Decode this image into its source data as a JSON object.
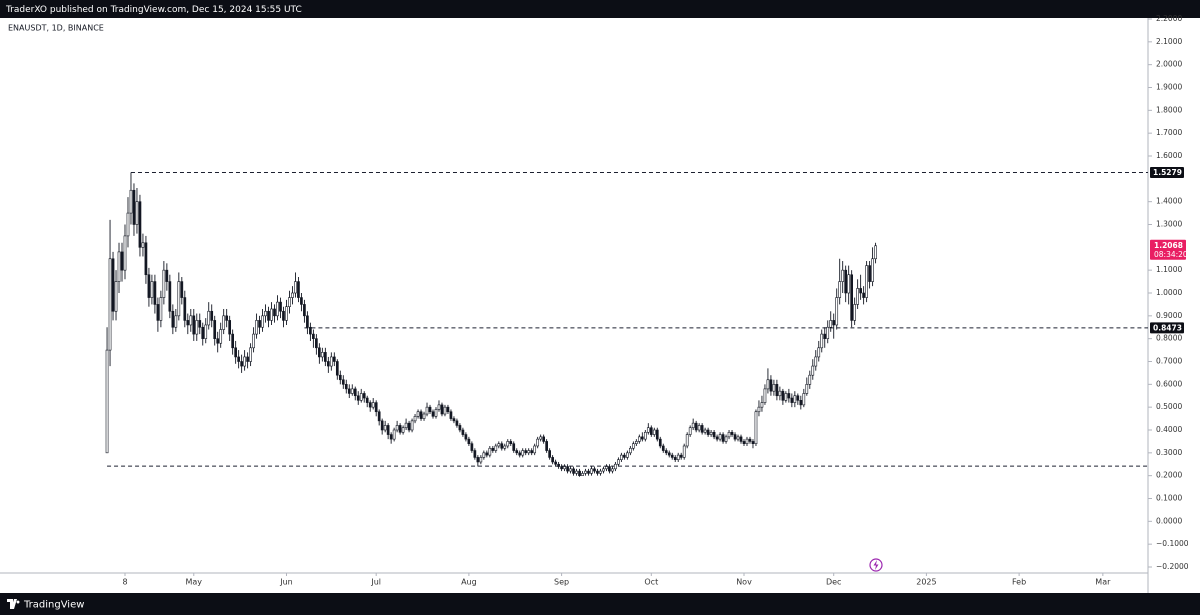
{
  "header": {
    "publisher": "TraderXO published on TradingView.com, Dec 15, 2024 15:55 UTC"
  },
  "footer": {
    "brand": "TradingView"
  },
  "chart_data": {
    "type": "candlestick",
    "title": "ENAUSDT, 1D, BINANCE",
    "color": "#131722",
    "open": [
      0.3,
      0.75,
      1.15,
      0.92,
      1.05,
      1.18,
      1.1,
      1.25,
      1.35,
      1.45,
      1.3,
      1.4,
      1.2,
      1.22,
      1.08,
      0.98,
      1.05,
      0.95,
      0.88,
      0.98,
      1.1,
      1.05,
      0.92,
      0.85,
      0.9,
      1.05,
      0.98,
      0.88,
      0.86,
      0.9,
      0.82,
      0.88,
      0.85,
      0.8,
      0.86,
      0.92,
      0.88,
      0.8,
      0.78,
      0.84,
      0.9,
      0.88,
      0.82,
      0.76,
      0.72,
      0.7,
      0.68,
      0.72,
      0.7,
      0.76,
      0.82,
      0.88,
      0.85,
      0.9,
      0.92,
      0.88,
      0.93,
      0.9,
      0.96,
      0.92,
      0.88,
      0.94,
      0.98,
      1.0,
      1.05,
      0.98,
      0.95,
      0.9,
      0.85,
      0.82,
      0.8,
      0.76,
      0.72,
      0.74,
      0.7,
      0.68,
      0.72,
      0.7,
      0.64,
      0.62,
      0.6,
      0.58,
      0.56,
      0.58,
      0.55,
      0.53,
      0.56,
      0.54,
      0.52,
      0.5,
      0.52,
      0.48,
      0.44,
      0.4,
      0.42,
      0.38,
      0.36,
      0.4,
      0.42,
      0.39,
      0.41,
      0.43,
      0.4,
      0.44,
      0.46,
      0.48,
      0.45,
      0.47,
      0.5,
      0.48,
      0.46,
      0.49,
      0.51,
      0.47,
      0.5,
      0.48,
      0.45,
      0.44,
      0.42,
      0.4,
      0.38,
      0.36,
      0.34,
      0.31,
      0.28,
      0.26,
      0.28,
      0.3,
      0.29,
      0.32,
      0.31,
      0.33,
      0.34,
      0.32,
      0.33,
      0.35,
      0.34,
      0.31,
      0.3,
      0.29,
      0.31,
      0.3,
      0.31,
      0.3,
      0.33,
      0.36,
      0.37,
      0.35,
      0.31,
      0.28,
      0.26,
      0.25,
      0.24,
      0.23,
      0.24,
      0.22,
      0.23,
      0.21,
      0.22,
      0.2,
      0.21,
      0.22,
      0.21,
      0.23,
      0.22,
      0.21,
      0.22,
      0.23,
      0.24,
      0.22,
      0.23,
      0.25,
      0.27,
      0.29,
      0.28,
      0.3,
      0.32,
      0.34,
      0.35,
      0.37,
      0.36,
      0.39,
      0.41,
      0.38,
      0.4,
      0.36,
      0.33,
      0.31,
      0.3,
      0.29,
      0.28,
      0.27,
      0.29,
      0.28,
      0.33,
      0.38,
      0.41,
      0.43,
      0.4,
      0.42,
      0.39,
      0.4,
      0.38,
      0.39,
      0.37,
      0.36,
      0.38,
      0.35,
      0.37,
      0.39,
      0.38,
      0.36,
      0.37,
      0.35,
      0.34,
      0.36,
      0.35,
      0.34,
      0.48,
      0.5,
      0.52,
      0.58,
      0.62,
      0.57,
      0.6,
      0.55,
      0.57,
      0.53,
      0.56,
      0.54,
      0.52,
      0.55,
      0.53,
      0.51,
      0.56,
      0.6,
      0.64,
      0.68,
      0.72,
      0.76,
      0.82,
      0.8,
      0.85,
      0.88,
      0.86,
      0.98,
      1.05,
      1.1,
      1.0,
      1.08,
      0.88,
      0.95,
      1.02,
      1.0,
      0.98,
      1.12,
      1.05,
      1.15
    ],
    "high": [
      0.85,
      1.32,
      1.18,
      1.1,
      1.22,
      1.22,
      1.3,
      1.42,
      1.5279,
      1.48,
      1.46,
      1.43,
      1.26,
      1.25,
      1.11,
      1.08,
      1.08,
      0.98,
      1.01,
      1.14,
      1.13,
      1.08,
      0.95,
      0.93,
      1.09,
      1.07,
      1.01,
      0.91,
      0.93,
      0.93,
      0.91,
      0.91,
      0.87,
      0.89,
      0.96,
      0.95,
      0.9,
      0.83,
      0.87,
      0.93,
      0.93,
      0.9,
      0.84,
      0.79,
      0.75,
      0.73,
      0.75,
      0.74,
      0.78,
      0.85,
      0.91,
      0.9,
      0.93,
      0.95,
      0.94,
      0.96,
      0.95,
      0.99,
      0.98,
      0.94,
      0.97,
      1.01,
      1.03,
      1.09,
      1.07,
      1.0,
      0.97,
      0.92,
      0.87,
      0.84,
      0.82,
      0.78,
      0.76,
      0.76,
      0.72,
      0.74,
      0.74,
      0.71,
      0.66,
      0.64,
      0.62,
      0.6,
      0.6,
      0.59,
      0.57,
      0.58,
      0.57,
      0.55,
      0.53,
      0.54,
      0.53,
      0.49,
      0.45,
      0.44,
      0.43,
      0.39,
      0.41,
      0.44,
      0.43,
      0.42,
      0.45,
      0.44,
      0.45,
      0.47,
      0.49,
      0.49,
      0.48,
      0.52,
      0.51,
      0.49,
      0.5,
      0.53,
      0.52,
      0.51,
      0.51,
      0.49,
      0.46,
      0.45,
      0.43,
      0.41,
      0.39,
      0.37,
      0.35,
      0.32,
      0.29,
      0.29,
      0.31,
      0.31,
      0.33,
      0.33,
      0.34,
      0.35,
      0.35,
      0.34,
      0.36,
      0.36,
      0.35,
      0.32,
      0.31,
      0.32,
      0.32,
      0.32,
      0.32,
      0.34,
      0.37,
      0.38,
      0.38,
      0.36,
      0.32,
      0.29,
      0.27,
      0.26,
      0.25,
      0.25,
      0.25,
      0.24,
      0.24,
      0.23,
      0.23,
      0.22,
      0.23,
      0.23,
      0.24,
      0.24,
      0.23,
      0.23,
      0.24,
      0.25,
      0.25,
      0.24,
      0.26,
      0.28,
      0.3,
      0.3,
      0.31,
      0.33,
      0.35,
      0.36,
      0.38,
      0.39,
      0.4,
      0.43,
      0.42,
      0.41,
      0.41,
      0.37,
      0.34,
      0.32,
      0.31,
      0.3,
      0.29,
      0.3,
      0.3,
      0.34,
      0.39,
      0.42,
      0.45,
      0.44,
      0.43,
      0.43,
      0.41,
      0.41,
      0.4,
      0.4,
      0.38,
      0.39,
      0.39,
      0.38,
      0.4,
      0.4,
      0.39,
      0.38,
      0.38,
      0.36,
      0.37,
      0.37,
      0.36,
      0.49,
      0.53,
      0.55,
      0.6,
      0.67,
      0.64,
      0.62,
      0.62,
      0.59,
      0.58,
      0.57,
      0.58,
      0.56,
      0.57,
      0.56,
      0.55,
      0.58,
      0.63,
      0.66,
      0.71,
      0.75,
      0.79,
      0.84,
      0.85,
      0.88,
      0.92,
      0.91,
      1.02,
      1.15,
      1.14,
      1.12,
      1.12,
      1.1,
      0.98,
      1.06,
      1.08,
      1.03,
      1.14,
      1.14,
      1.2,
      1.22
    ],
    "low": [
      0.3,
      0.68,
      0.88,
      0.88,
      1.0,
      1.05,
      1.06,
      1.2,
      1.3,
      1.25,
      1.26,
      1.16,
      1.16,
      1.04,
      0.94,
      0.95,
      0.91,
      0.83,
      0.85,
      0.95,
      1.01,
      0.89,
      0.82,
      0.83,
      0.88,
      0.95,
      0.85,
      0.82,
      0.83,
      0.79,
      0.79,
      0.82,
      0.77,
      0.78,
      0.84,
      0.85,
      0.77,
      0.74,
      0.76,
      0.82,
      0.85,
      0.79,
      0.73,
      0.69,
      0.67,
      0.65,
      0.66,
      0.67,
      0.68,
      0.74,
      0.8,
      0.82,
      0.83,
      0.87,
      0.85,
      0.86,
      0.87,
      0.88,
      0.89,
      0.85,
      0.86,
      0.91,
      0.95,
      0.98,
      0.96,
      0.92,
      0.87,
      0.82,
      0.79,
      0.76,
      0.73,
      0.69,
      0.7,
      0.68,
      0.65,
      0.66,
      0.68,
      0.62,
      0.6,
      0.58,
      0.56,
      0.54,
      0.55,
      0.53,
      0.51,
      0.52,
      0.52,
      0.5,
      0.48,
      0.49,
      0.46,
      0.42,
      0.38,
      0.39,
      0.36,
      0.34,
      0.35,
      0.39,
      0.38,
      0.38,
      0.4,
      0.39,
      0.39,
      0.43,
      0.45,
      0.44,
      0.44,
      0.46,
      0.47,
      0.45,
      0.45,
      0.48,
      0.46,
      0.46,
      0.47,
      0.44,
      0.43,
      0.41,
      0.39,
      0.37,
      0.35,
      0.33,
      0.3,
      0.27,
      0.24,
      0.25,
      0.27,
      0.28,
      0.28,
      0.3,
      0.3,
      0.32,
      0.31,
      0.31,
      0.32,
      0.33,
      0.3,
      0.29,
      0.28,
      0.28,
      0.29,
      0.29,
      0.29,
      0.29,
      0.32,
      0.35,
      0.34,
      0.3,
      0.27,
      0.25,
      0.24,
      0.23,
      0.22,
      0.22,
      0.21,
      0.21,
      0.2,
      0.2,
      0.195,
      0.2,
      0.2,
      0.2,
      0.2,
      0.21,
      0.2,
      0.2,
      0.21,
      0.22,
      0.21,
      0.21,
      0.22,
      0.24,
      0.26,
      0.27,
      0.27,
      0.29,
      0.31,
      0.33,
      0.34,
      0.35,
      0.35,
      0.38,
      0.37,
      0.37,
      0.35,
      0.32,
      0.3,
      0.29,
      0.28,
      0.27,
      0.26,
      0.26,
      0.27,
      0.27,
      0.32,
      0.37,
      0.4,
      0.39,
      0.39,
      0.38,
      0.38,
      0.37,
      0.37,
      0.36,
      0.35,
      0.35,
      0.34,
      0.34,
      0.36,
      0.37,
      0.35,
      0.35,
      0.34,
      0.33,
      0.33,
      0.34,
      0.32,
      0.33,
      0.46,
      0.48,
      0.51,
      0.56,
      0.55,
      0.55,
      0.53,
      0.53,
      0.51,
      0.52,
      0.52,
      0.5,
      0.5,
      0.51,
      0.49,
      0.5,
      0.55,
      0.58,
      0.62,
      0.66,
      0.7,
      0.74,
      0.76,
      0.78,
      0.83,
      0.8,
      0.84,
      0.95,
      1.0,
      0.96,
      0.95,
      0.85,
      0.86,
      0.93,
      0.97,
      0.95,
      0.96,
      1.02,
      1.03,
      1.13
    ],
    "close": [
      0.75,
      1.15,
      0.92,
      1.05,
      1.18,
      1.1,
      1.25,
      1.35,
      1.45,
      1.3,
      1.4,
      1.2,
      1.22,
      1.08,
      0.98,
      1.05,
      0.95,
      0.88,
      0.98,
      1.1,
      1.05,
      0.92,
      0.85,
      0.9,
      1.05,
      0.98,
      0.88,
      0.86,
      0.9,
      0.82,
      0.88,
      0.85,
      0.8,
      0.86,
      0.92,
      0.88,
      0.8,
      0.78,
      0.84,
      0.9,
      0.88,
      0.82,
      0.76,
      0.72,
      0.7,
      0.68,
      0.72,
      0.7,
      0.76,
      0.82,
      0.88,
      0.85,
      0.9,
      0.92,
      0.88,
      0.93,
      0.9,
      0.96,
      0.92,
      0.88,
      0.94,
      0.98,
      1.0,
      1.05,
      0.98,
      0.95,
      0.9,
      0.85,
      0.82,
      0.8,
      0.76,
      0.72,
      0.74,
      0.7,
      0.68,
      0.72,
      0.7,
      0.64,
      0.62,
      0.6,
      0.58,
      0.56,
      0.58,
      0.55,
      0.53,
      0.56,
      0.54,
      0.52,
      0.5,
      0.52,
      0.48,
      0.44,
      0.4,
      0.42,
      0.38,
      0.36,
      0.4,
      0.42,
      0.39,
      0.41,
      0.43,
      0.4,
      0.44,
      0.46,
      0.48,
      0.45,
      0.47,
      0.5,
      0.48,
      0.46,
      0.49,
      0.51,
      0.47,
      0.5,
      0.48,
      0.45,
      0.44,
      0.42,
      0.4,
      0.38,
      0.36,
      0.34,
      0.31,
      0.28,
      0.26,
      0.28,
      0.3,
      0.29,
      0.32,
      0.31,
      0.33,
      0.34,
      0.32,
      0.33,
      0.35,
      0.34,
      0.31,
      0.3,
      0.29,
      0.31,
      0.3,
      0.31,
      0.3,
      0.33,
      0.36,
      0.37,
      0.35,
      0.31,
      0.28,
      0.26,
      0.25,
      0.24,
      0.23,
      0.24,
      0.22,
      0.23,
      0.21,
      0.22,
      0.2,
      0.21,
      0.22,
      0.21,
      0.23,
      0.22,
      0.21,
      0.22,
      0.23,
      0.24,
      0.22,
      0.23,
      0.25,
      0.27,
      0.29,
      0.28,
      0.3,
      0.32,
      0.34,
      0.35,
      0.37,
      0.36,
      0.39,
      0.41,
      0.38,
      0.4,
      0.36,
      0.33,
      0.31,
      0.3,
      0.29,
      0.28,
      0.27,
      0.29,
      0.28,
      0.33,
      0.38,
      0.41,
      0.43,
      0.4,
      0.42,
      0.39,
      0.4,
      0.38,
      0.39,
      0.37,
      0.36,
      0.38,
      0.35,
      0.37,
      0.39,
      0.38,
      0.36,
      0.37,
      0.35,
      0.34,
      0.36,
      0.35,
      0.34,
      0.48,
      0.5,
      0.52,
      0.58,
      0.62,
      0.57,
      0.6,
      0.55,
      0.57,
      0.53,
      0.56,
      0.54,
      0.52,
      0.55,
      0.53,
      0.51,
      0.56,
      0.6,
      0.64,
      0.68,
      0.72,
      0.76,
      0.82,
      0.8,
      0.85,
      0.88,
      0.86,
      0.98,
      1.05,
      1.1,
      1.0,
      1.08,
      0.88,
      0.95,
      1.02,
      1.0,
      0.98,
      1.12,
      1.05,
      1.15,
      1.2068
    ],
    "countdown": "08:34:20",
    "last_price_color": "#e91e63",
    "levels": [
      1.5279,
      0.8473
    ],
    "support_level": 0.242,
    "xlim": [
      -35.8,
      348.1
    ],
    "xticks": [
      {
        "value": 6,
        "label": "8"
      },
      {
        "value": 29,
        "label": "May"
      },
      {
        "value": 60,
        "label": "Jun"
      },
      {
        "value": 90,
        "label": "Jul"
      },
      {
        "value": 121,
        "label": "Aug"
      },
      {
        "value": 152,
        "label": "Sep"
      },
      {
        "value": 182,
        "label": "Oct"
      },
      {
        "value": 213,
        "label": "Nov"
      },
      {
        "value": 243,
        "label": "Dec"
      },
      {
        "value": 274,
        "label": "2025"
      },
      {
        "value": 305,
        "label": "Feb"
      },
      {
        "value": 333,
        "label": "Mar"
      }
    ],
    "ylim": [
      -0.2,
      2.2
    ],
    "yticks": [
      {
        "value": 2.2,
        "label": "2.2000"
      },
      {
        "value": 2.1,
        "label": "2.1000"
      },
      {
        "value": 2.0,
        "label": "2.0000"
      },
      {
        "value": 1.9,
        "label": "1.9000"
      },
      {
        "value": 1.8,
        "label": "1.8000"
      },
      {
        "value": 1.7,
        "label": "1.7000"
      },
      {
        "value": 1.6,
        "label": "1.6000"
      },
      {
        "value": 1.4,
        "label": "1.4000"
      },
      {
        "value": 1.3,
        "label": "1.3000"
      },
      {
        "value": 1.1,
        "label": "1.1000"
      },
      {
        "value": 1.0,
        "label": "1.0000"
      },
      {
        "value": 0.9,
        "label": "0.9000"
      },
      {
        "value": 0.8,
        "label": "0.8000"
      },
      {
        "value": 0.7,
        "label": "0.7000"
      },
      {
        "value": 0.6,
        "label": "0.6000"
      },
      {
        "value": 0.5,
        "label": "0.5000"
      },
      {
        "value": 0.4,
        "label": "0.4000"
      },
      {
        "value": 0.3,
        "label": "0.3000"
      },
      {
        "value": 0.2,
        "label": "0.2000"
      },
      {
        "value": 0.1,
        "label": "0.1000"
      },
      {
        "value": 0,
        "label": "0.0000"
      },
      {
        "value": -0.1,
        "label": "−0.1000"
      },
      {
        "value": -0.2,
        "label": "−0.2000"
      }
    ]
  }
}
